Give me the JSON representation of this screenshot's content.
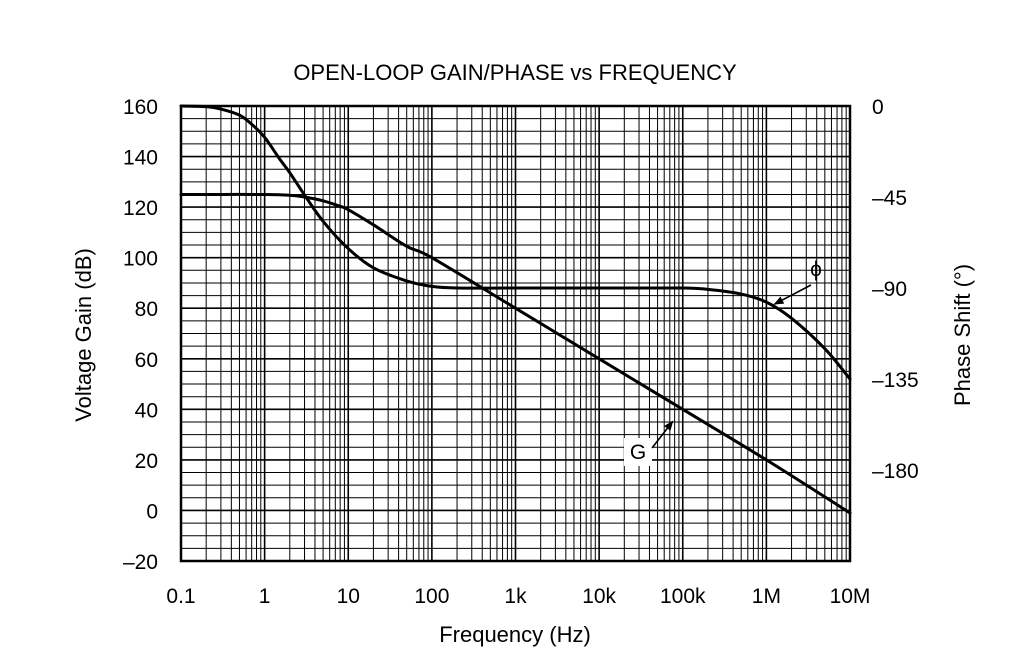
{
  "chart_data": {
    "type": "line",
    "title": "OPEN-LOOP GAIN/PHASE vs FREQUENCY",
    "xlabel": "Frequency (Hz)",
    "ylabel": "Voltage Gain (dB)",
    "y2label": "Phase Shift (°)",
    "x_scale": "log",
    "xlim": [
      0.1,
      10000000
    ],
    "ylim": [
      -20,
      160
    ],
    "y2lim": [
      -225,
      0
    ],
    "grid": true,
    "x_ticks": [
      {
        "value": 0.1,
        "label": "0.1"
      },
      {
        "value": 1,
        "label": "1"
      },
      {
        "value": 10,
        "label": "10"
      },
      {
        "value": 100,
        "label": "100"
      },
      {
        "value": 1000,
        "label": "1k"
      },
      {
        "value": 10000,
        "label": "10k"
      },
      {
        "value": 100000,
        "label": "100k"
      },
      {
        "value": 1000000,
        "label": "1M"
      },
      {
        "value": 10000000,
        "label": "10M"
      }
    ],
    "y_ticks": [
      {
        "value": 160,
        "label": "160"
      },
      {
        "value": 140,
        "label": "140"
      },
      {
        "value": 120,
        "label": "120"
      },
      {
        "value": 100,
        "label": "100"
      },
      {
        "value": 80,
        "label": "80"
      },
      {
        "value": 60,
        "label": "60"
      },
      {
        "value": 40,
        "label": "40"
      },
      {
        "value": 20,
        "label": "20"
      },
      {
        "value": 0,
        "label": "0"
      },
      {
        "value": -20,
        "label": "–20"
      }
    ],
    "y2_ticks": [
      {
        "value": 0,
        "label": "0"
      },
      {
        "value": -45,
        "label": "–45"
      },
      {
        "value": -90,
        "label": "–90"
      },
      {
        "value": -135,
        "label": "–135"
      },
      {
        "value": -180,
        "label": "–180"
      }
    ],
    "series": [
      {
        "name": "G",
        "axis": "left",
        "x": [
          0.1,
          0.3,
          1,
          2,
          3,
          5,
          8,
          10,
          20,
          50,
          100,
          1000,
          10000,
          100000,
          1000000,
          10000000
        ],
        "values": [
          125,
          125,
          125,
          124.7,
          124,
          122.5,
          120.3,
          119,
          113,
          104.5,
          100,
          80,
          60,
          40,
          20,
          -1
        ]
      },
      {
        "name": "ϕ",
        "axis": "right",
        "x": [
          0.1,
          0.2,
          0.3,
          0.5,
          0.7,
          1,
          1.5,
          2,
          3,
          5,
          10,
          20,
          50,
          100,
          200,
          1000,
          10000,
          100000,
          200000,
          500000,
          1000000,
          2000000,
          5000000,
          10000000
        ],
        "values": [
          0,
          -0.3,
          -1.5,
          -4.5,
          -9,
          -15.5,
          -26,
          -33,
          -44,
          -57,
          -70.5,
          -80,
          -86.5,
          -89.2,
          -90,
          -90,
          -90,
          -90,
          -90.7,
          -93,
          -97,
          -105,
          -120,
          -135
        ]
      }
    ],
    "annotations": [
      {
        "text": "ϕ",
        "series": "ϕ",
        "arrow_to": {
          "x": 1000000,
          "y2": -98
        }
      },
      {
        "text": "G",
        "series": "G",
        "arrow_to": {
          "x": 100000,
          "y": 40
        }
      }
    ]
  }
}
